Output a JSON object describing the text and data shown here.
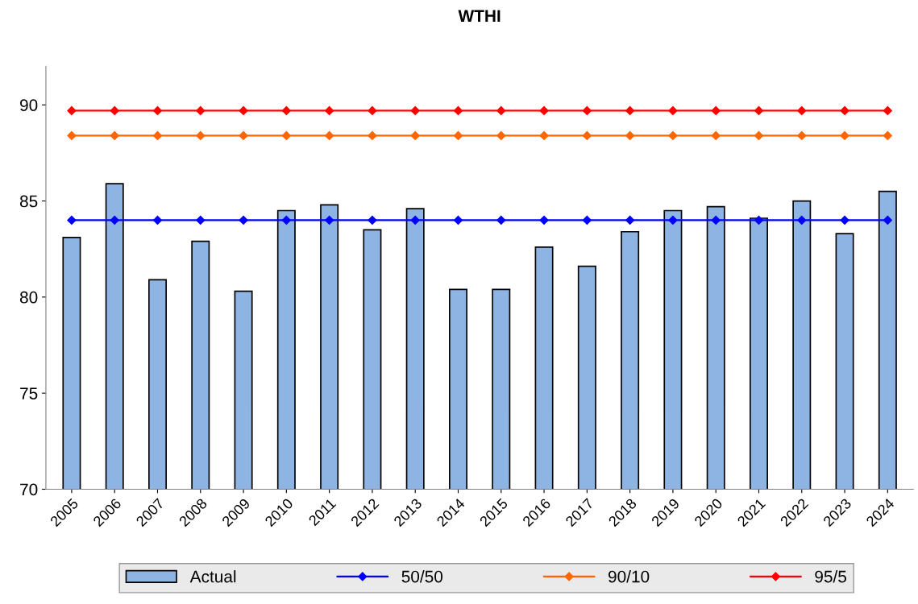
{
  "chart_data": {
    "type": "bar",
    "title": "WTHI",
    "categories": [
      "2005",
      "2006",
      "2007",
      "2008",
      "2009",
      "2010",
      "2011",
      "2012",
      "2013",
      "2014",
      "2015",
      "2016",
      "2017",
      "2018",
      "2019",
      "2020",
      "2021",
      "2022",
      "2023",
      "2024"
    ],
    "series": [
      {
        "name": "Actual",
        "color": "#8eb4e3",
        "values": [
          83.1,
          85.9,
          80.9,
          82.9,
          80.3,
          84.5,
          84.8,
          83.5,
          84.6,
          80.4,
          80.4,
          82.6,
          81.6,
          83.4,
          84.5,
          84.7,
          84.1,
          85.0,
          83.3,
          85.5
        ]
      },
      {
        "name": "50/50",
        "type": "line",
        "color": "#0000ff",
        "values": [
          84.0,
          84.0,
          84.0,
          84.0,
          84.0,
          84.0,
          84.0,
          84.0,
          84.0,
          84.0,
          84.0,
          84.0,
          84.0,
          84.0,
          84.0,
          84.0,
          84.0,
          84.0,
          84.0,
          84.0
        ]
      },
      {
        "name": "90/10",
        "type": "line",
        "color": "#ff6600",
        "values": [
          88.4,
          88.4,
          88.4,
          88.4,
          88.4,
          88.4,
          88.4,
          88.4,
          88.4,
          88.4,
          88.4,
          88.4,
          88.4,
          88.4,
          88.4,
          88.4,
          88.4,
          88.4,
          88.4,
          88.4
        ]
      },
      {
        "name": "95/5",
        "type": "line",
        "color": "#ff0000",
        "values": [
          89.7,
          89.7,
          89.7,
          89.7,
          89.7,
          89.7,
          89.7,
          89.7,
          89.7,
          89.7,
          89.7,
          89.7,
          89.7,
          89.7,
          89.7,
          89.7,
          89.7,
          89.7,
          89.7,
          89.7
        ]
      }
    ],
    "ylim": [
      70,
      92
    ],
    "yticks": [
      70,
      75,
      80,
      85,
      90
    ],
    "grid": false,
    "legend": "bottom",
    "marker": "diamond",
    "line_style": "solid"
  }
}
